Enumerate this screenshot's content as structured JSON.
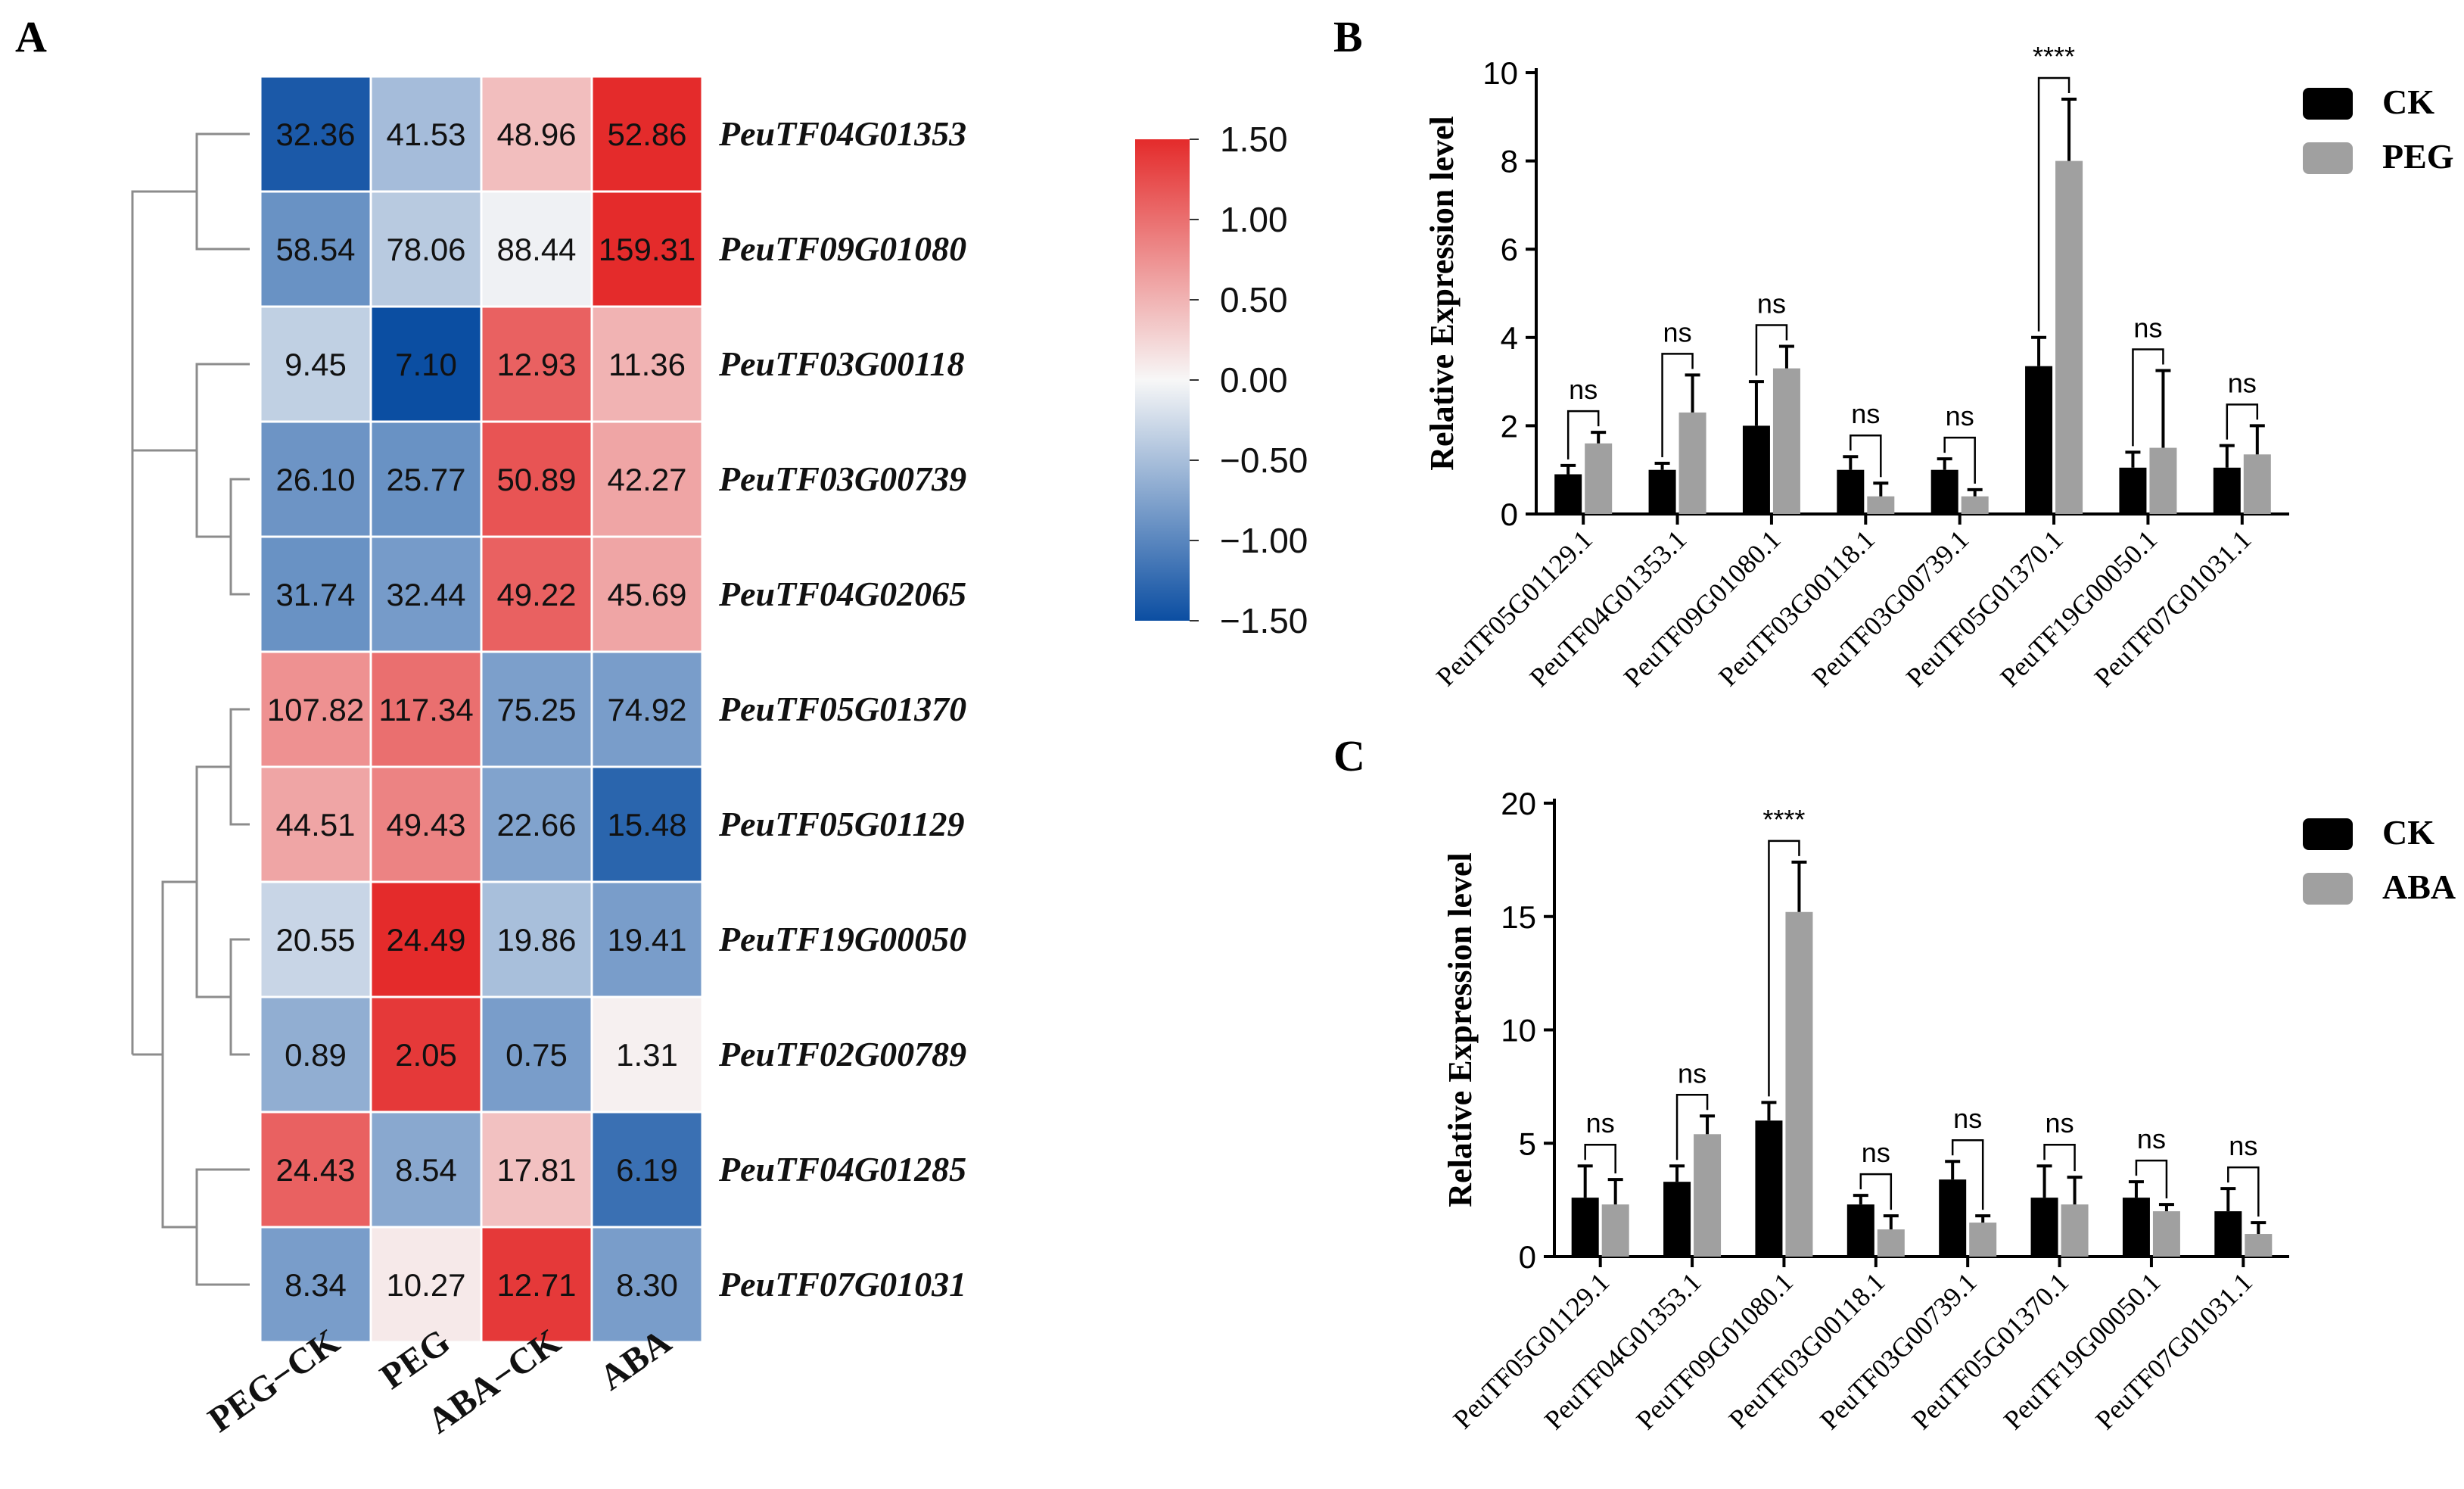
{
  "panel_labels": [
    "A",
    "B",
    "C"
  ],
  "chart_data": [
    {
      "type": "heatmap",
      "title": "",
      "columns": [
        "PEG−CK",
        "PEG",
        "ABA−CK",
        "ABA"
      ],
      "rows": [
        "PeuTF04G01353",
        "PeuTF09G01080",
        "PeuTF03G00118",
        "PeuTF03G00739",
        "PeuTF04G02065",
        "PeuTF05G01370",
        "PeuTF05G01129",
        "PeuTF19G00050",
        "PeuTF02G00789",
        "PeuTF04G01285",
        "PeuTF07G01031"
      ],
      "values": [
        [
          "32.36",
          "41.53",
          "48.96",
          "52.86"
        ],
        [
          "58.54",
          "78.06",
          "88.44",
          "159.31"
        ],
        [
          "9.45",
          "7.10",
          "12.93",
          "11.36"
        ],
        [
          "26.10",
          "25.77",
          "50.89",
          "42.27"
        ],
        [
          "31.74",
          "32.44",
          "49.22",
          "45.69"
        ],
        [
          "107.82",
          "117.34",
          "75.25",
          "74.92"
        ],
        [
          "44.51",
          "49.43",
          "22.66",
          "15.48"
        ],
        [
          "20.55",
          "24.49",
          "19.86",
          "19.41"
        ],
        [
          "0.89",
          "2.05",
          "0.75",
          "1.31"
        ],
        [
          "24.43",
          "8.54",
          "17.81",
          "6.19"
        ],
        [
          "8.34",
          "10.27",
          "12.71",
          "8.30"
        ]
      ],
      "zscores": [
        [
          -1.4,
          -0.52,
          0.42,
          1.5
        ],
        [
          -0.9,
          -0.4,
          -0.05,
          1.5
        ],
        [
          -0.35,
          -1.5,
          1.1,
          0.5
        ],
        [
          -0.88,
          -0.9,
          1.2,
          0.6
        ],
        [
          -0.9,
          -0.82,
          1.1,
          0.6
        ],
        [
          0.75,
          1.0,
          -0.78,
          -0.8
        ],
        [
          0.6,
          0.85,
          -0.75,
          -1.3
        ],
        [
          -0.3,
          1.5,
          -0.5,
          -0.8
        ],
        [
          -0.65,
          1.4,
          -0.8,
          0.05
        ],
        [
          1.1,
          -0.7,
          0.4,
          -1.2
        ],
        [
          -0.8,
          0.1,
          1.4,
          -0.8
        ]
      ],
      "colorbar": {
        "ticks": [
          "1.50",
          "1.00",
          "0.50",
          "0.00",
          "−0.50",
          "−1.00",
          "−1.50"
        ],
        "range": [
          -1.5,
          1.5
        ],
        "low_color": "#0b4ea2",
        "mid_color": "#f7f7f7",
        "high_color": "#e42b2b"
      }
    },
    {
      "type": "bar",
      "ylabel": "Relative Expression level",
      "ylim": [
        0,
        10
      ],
      "yticks": [
        "0",
        "2",
        "4",
        "6",
        "8",
        "10"
      ],
      "categories": [
        "PeuTF05G01129.1",
        "PeuTF04G01353.1",
        "PeuTF09G01080.1",
        "PeuTF03G00118.1",
        "PeuTF03G00739.1",
        "PeuTF05G01370.1",
        "PeuTF19G00050.1",
        "PeuTF07G01031.1"
      ],
      "series": [
        {
          "name": "CK",
          "color": "#000000",
          "values": [
            0.9,
            1.0,
            2.0,
            1.0,
            1.0,
            3.35,
            1.05,
            1.05
          ],
          "errors": [
            0.2,
            0.15,
            1.0,
            0.3,
            0.25,
            0.65,
            0.35,
            0.5
          ]
        },
        {
          "name": "PEG",
          "color": "#a0a0a0",
          "values": [
            1.6,
            2.3,
            3.3,
            0.4,
            0.4,
            8.0,
            1.5,
            1.35
          ],
          "errors": [
            0.25,
            0.85,
            0.5,
            0.3,
            0.15,
            1.4,
            1.75,
            0.65
          ]
        }
      ],
      "significance": [
        "ns",
        "ns",
        "ns",
        "ns",
        "ns",
        "****",
        "ns",
        "ns"
      ]
    },
    {
      "type": "bar",
      "ylabel": "Relative Expression level",
      "ylim": [
        0,
        20
      ],
      "yticks": [
        "0",
        "5",
        "10",
        "15",
        "20"
      ],
      "categories": [
        "PeuTF05G01129.1",
        "PeuTF04G01353.1",
        "PeuTF09G01080.1",
        "PeuTF03G00118.1",
        "PeuTF03G00739.1",
        "PeuTF05G01370.1",
        "PeuTF19G00050.1",
        "PeuTF07G01031.1"
      ],
      "series": [
        {
          "name": "CK",
          "color": "#000000",
          "values": [
            2.6,
            3.3,
            6.0,
            2.3,
            3.4,
            2.6,
            2.6,
            2.0
          ],
          "errors": [
            1.4,
            0.7,
            0.8,
            0.4,
            0.8,
            1.4,
            0.7,
            1.0
          ]
        },
        {
          "name": "ABA",
          "color": "#a0a0a0",
          "values": [
            2.3,
            5.4,
            15.2,
            1.2,
            1.5,
            2.3,
            2.0,
            1.0
          ],
          "errors": [
            1.1,
            0.8,
            2.2,
            0.6,
            0.3,
            1.2,
            0.3,
            0.5
          ]
        }
      ],
      "significance": [
        "ns",
        "ns",
        "****",
        "ns",
        "ns",
        "ns",
        "ns",
        "ns"
      ]
    }
  ]
}
